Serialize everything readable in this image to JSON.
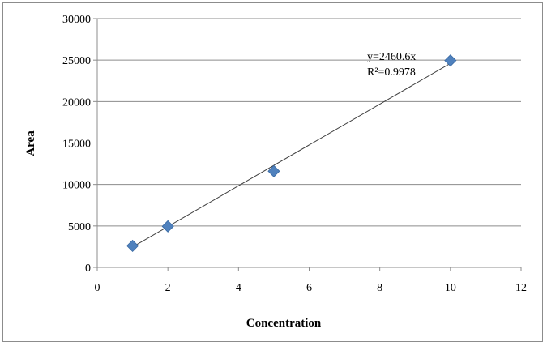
{
  "chart_data": {
    "type": "scatter",
    "title": "",
    "xlabel": "Concentration",
    "ylabel": "Area",
    "xlim": [
      0,
      12
    ],
    "ylim": [
      0,
      30000
    ],
    "x_ticks": [
      0,
      2,
      4,
      6,
      8,
      10,
      12
    ],
    "y_ticks": [
      0,
      5000,
      10000,
      15000,
      20000,
      25000,
      30000
    ],
    "grid": "horizontal",
    "marker": "diamond",
    "marker_color": "#4f81bd",
    "series": [
      {
        "points": [
          {
            "x": 1,
            "y": 2600
          },
          {
            "x": 2,
            "y": 4950
          },
          {
            "x": 5,
            "y": 11600
          },
          {
            "x": 10,
            "y": 24950
          }
        ]
      }
    ],
    "trendline": {
      "type": "linear",
      "slope": 2460.6,
      "intercept": 0,
      "x_range": [
        1,
        10
      ],
      "color": "#404040"
    },
    "annotations": {
      "equation": "y=2460.6x",
      "r_squared": "R²=0.9978"
    }
  }
}
